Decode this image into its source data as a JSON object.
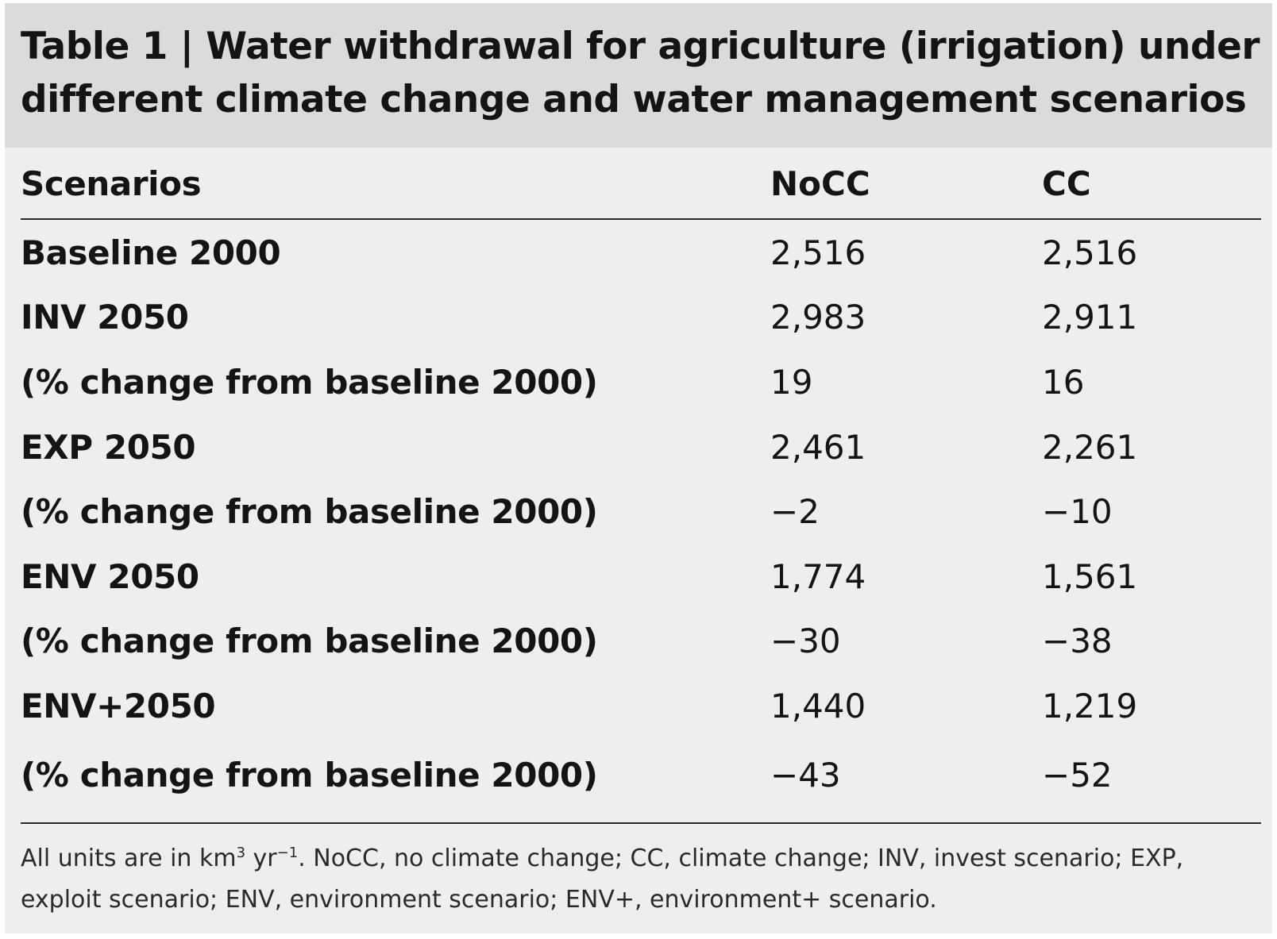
{
  "table": {
    "title_line1": "Table 1 | Water withdrawal for agriculture (irrigation) under",
    "title_line2": "different climate change and water management scenarios",
    "headers": {
      "scenario": "Scenarios",
      "nocc": "NoCC",
      "cc": "CC"
    },
    "rows": [
      {
        "label": "Baseline 2000",
        "nocc": "2,516",
        "cc": "2,516"
      },
      {
        "label": "INV 2050",
        "nocc": "2,983",
        "cc": "2,911"
      },
      {
        "label": "(% change from baseline 2000)",
        "nocc": "19",
        "cc": "16"
      },
      {
        "label": "EXP 2050",
        "nocc": "2,461",
        "cc": "2,261"
      },
      {
        "label": "(% change from baseline 2000)",
        "nocc": "−2",
        "cc": "−10"
      },
      {
        "label": "ENV 2050",
        "nocc": "1,774",
        "cc": "1,561"
      },
      {
        "label": "(% change from baseline 2000)",
        "nocc": "−30",
        "cc": "−38"
      },
      {
        "label": "ENV+2050",
        "nocc": "1,440",
        "cc": "1,219"
      },
      {
        "label": "(% change from baseline 2000)",
        "nocc": "−43",
        "cc": "−52"
      }
    ],
    "footnote": {
      "pre_unit": "All units are in km",
      "exp1": "3",
      "mid_unit": " yr",
      "exp2": "−1",
      "post_unit": ".  NoCC, no climate change; CC, climate change; INV, invest scenario; EXP, exploit scenario; ENV, environment scenario; ENV+, environment+ scenario."
    }
  }
}
